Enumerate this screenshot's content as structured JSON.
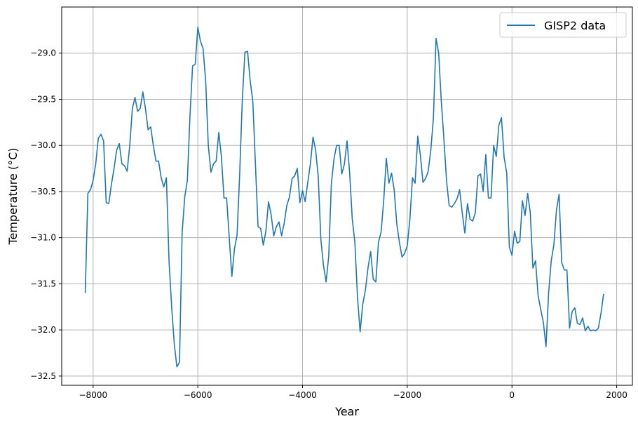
{
  "chart_data": {
    "type": "line",
    "title": "",
    "xlabel": "Year",
    "ylabel": "Temperature (°C)",
    "xlim": [
      -8600,
      2300
    ],
    "ylim": [
      -32.6,
      -28.5
    ],
    "xticks": [
      -8000,
      -6000,
      -4000,
      -2000,
      0,
      2000
    ],
    "xtick_labels": [
      "−8000",
      "−6000",
      "−4000",
      "−2000",
      "0",
      "2000"
    ],
    "yticks": [
      -32.5,
      -32.0,
      -31.5,
      -31.0,
      -30.5,
      -30.0,
      -29.5,
      -29.0
    ],
    "ytick_labels": [
      "−32.5",
      "−32.0",
      "−31.5",
      "−31.0",
      "−30.5",
      "−30.0",
      "−29.5",
      "−29.0"
    ],
    "grid": true,
    "legend_position": "top-right",
    "series": [
      {
        "name": "GISP2 data",
        "color": "#1f77b4",
        "x": [
          -8150,
          -8100,
          -8050,
          -8000,
          -7950,
          -7900,
          -7850,
          -7800,
          -7750,
          -7700,
          -7650,
          -7600,
          -7550,
          -7500,
          -7450,
          -7400,
          -7350,
          -7300,
          -7250,
          -7200,
          -7150,
          -7100,
          -7050,
          -7000,
          -6950,
          -6900,
          -6850,
          -6800,
          -6750,
          -6700,
          -6650,
          -6600,
          -6550,
          -6500,
          -6450,
          -6400,
          -6350,
          -6300,
          -6250,
          -6200,
          -6150,
          -6100,
          -6050,
          -6000,
          -5950,
          -5900,
          -5850,
          -5800,
          -5750,
          -5700,
          -5650,
          -5600,
          -5550,
          -5500,
          -5450,
          -5400,
          -5350,
          -5300,
          -5250,
          -5200,
          -5150,
          -5100,
          -5050,
          -5000,
          -4950,
          -4900,
          -4850,
          -4800,
          -4750,
          -4700,
          -4650,
          -4600,
          -4550,
          -4500,
          -4450,
          -4400,
          -4350,
          -4300,
          -4250,
          -4200,
          -4150,
          -4100,
          -4050,
          -4000,
          -3950,
          -3900,
          -3850,
          -3800,
          -3750,
          -3700,
          -3650,
          -3600,
          -3550,
          -3500,
          -3450,
          -3400,
          -3350,
          -3300,
          -3250,
          -3200,
          -3150,
          -3100,
          -3050,
          -3000,
          -2950,
          -2900,
          -2850,
          -2800,
          -2750,
          -2700,
          -2650,
          -2600,
          -2550,
          -2500,
          -2450,
          -2400,
          -2350,
          -2300,
          -2250,
          -2200,
          -2150,
          -2100,
          -2050,
          -2000,
          -1950,
          -1900,
          -1850,
          -1800,
          -1750,
          -1700,
          -1650,
          -1600,
          -1550,
          -1500,
          -1450,
          -1400,
          -1350,
          -1300,
          -1250,
          -1200,
          -1150,
          -1100,
          -1050,
          -1000,
          -950,
          -900,
          -850,
          -800,
          -750,
          -700,
          -650,
          -600,
          -550,
          -500,
          -450,
          -400,
          -350,
          -300,
          -250,
          -200,
          -150,
          -100,
          -50,
          0,
          50,
          100,
          150,
          200,
          250,
          300,
          350,
          400,
          450,
          500,
          550,
          600,
          650,
          700,
          750,
          800,
          850,
          900,
          950,
          1000,
          1050,
          1100,
          1150,
          1200,
          1250,
          1300,
          1350,
          1400,
          1450,
          1500,
          1550,
          1600,
          1650,
          1700,
          1750
        ],
        "y": [
          -31.6,
          -30.52,
          -30.48,
          -30.38,
          -30.2,
          -29.92,
          -29.88,
          -29.95,
          -30.62,
          -30.63,
          -30.42,
          -30.25,
          -30.05,
          -29.98,
          -30.2,
          -30.22,
          -30.28,
          -30.0,
          -29.6,
          -29.48,
          -29.63,
          -29.6,
          -29.42,
          -29.6,
          -29.83,
          -29.8,
          -30.0,
          -30.17,
          -30.17,
          -30.35,
          -30.45,
          -30.35,
          -31.25,
          -31.75,
          -32.15,
          -32.4,
          -32.35,
          -30.95,
          -30.56,
          -30.38,
          -29.68,
          -29.14,
          -29.12,
          -28.72,
          -28.87,
          -28.95,
          -29.3,
          -30.0,
          -30.29,
          -30.2,
          -30.17,
          -29.86,
          -30.12,
          -30.57,
          -30.57,
          -31.0,
          -31.42,
          -31.12,
          -30.97,
          -30.3,
          -29.5,
          -28.99,
          -28.98,
          -29.3,
          -29.52,
          -30.2,
          -30.88,
          -30.9,
          -31.08,
          -30.93,
          -30.61,
          -30.75,
          -30.98,
          -30.88,
          -30.83,
          -30.98,
          -30.84,
          -30.65,
          -30.56,
          -30.36,
          -30.33,
          -30.25,
          -30.62,
          -30.49,
          -30.61,
          -30.4,
          -30.2,
          -29.91,
          -30.05,
          -30.34,
          -31.02,
          -31.3,
          -31.48,
          -31.2,
          -30.42,
          -30.15,
          -30.0,
          -30.0,
          -30.31,
          -30.2,
          -29.95,
          -30.3,
          -30.8,
          -31.05,
          -31.65,
          -32.02,
          -31.72,
          -31.57,
          -31.33,
          -31.15,
          -31.45,
          -31.48,
          -31.05,
          -30.94,
          -30.6,
          -30.14,
          -30.41,
          -30.3,
          -30.48,
          -30.85,
          -31.05,
          -31.21,
          -31.17,
          -31.09,
          -30.8,
          -30.35,
          -30.41,
          -29.9,
          -30.1,
          -30.4,
          -30.36,
          -30.28,
          -30.05,
          -29.7,
          -28.84,
          -29.0,
          -29.52,
          -29.93,
          -30.38,
          -30.65,
          -30.67,
          -30.63,
          -30.58,
          -30.48,
          -30.73,
          -30.95,
          -30.63,
          -30.8,
          -30.82,
          -30.73,
          -30.33,
          -30.31,
          -30.5,
          -30.1,
          -30.57,
          -30.57,
          -30.0,
          -30.12,
          -29.78,
          -29.7,
          -30.13,
          -30.3,
          -31.1,
          -31.19,
          -30.93,
          -31.06,
          -31.04,
          -30.6,
          -30.76,
          -30.52,
          -30.73,
          -31.33,
          -31.25,
          -31.63,
          -31.78,
          -31.92,
          -32.18,
          -31.6,
          -31.25,
          -31.08,
          -30.7,
          -30.53,
          -31.27,
          -31.35,
          -31.35,
          -31.98,
          -31.8,
          -31.76,
          -31.93,
          -31.94,
          -31.87,
          -32.01,
          -31.96,
          -32.01,
          -32.0,
          -32.01,
          -31.98,
          -31.82,
          -31.61
        ]
      }
    ]
  }
}
